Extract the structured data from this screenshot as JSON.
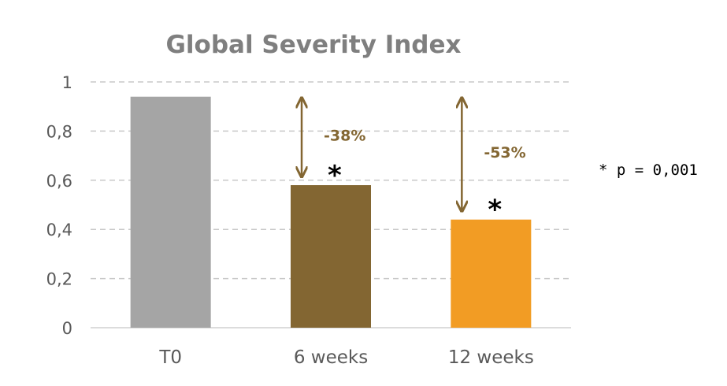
{
  "chart_data": {
    "type": "bar",
    "title": "Global Severity Index",
    "categories": [
      "T0",
      "6 weeks",
      "12 weeks"
    ],
    "values": [
      0.94,
      0.58,
      0.44
    ],
    "bar_colors": [
      "#a5a5a5",
      "#836632",
      "#f29c24"
    ],
    "ylim": [
      0,
      1
    ],
    "yticks": [
      0,
      0.2,
      0.4,
      0.6,
      0.8,
      1
    ],
    "ytick_labels": [
      "0",
      "0,2",
      "0,4",
      "0,6",
      "0,8",
      "1"
    ],
    "grid": true,
    "grid_style": "dashed",
    "annotations": [
      {
        "category": "6 weeks",
        "label": "-38%",
        "from": 0.94,
        "to": 0.58,
        "significance": "*"
      },
      {
        "category": "12 weeks",
        "label": "-53%",
        "from": 0.94,
        "to": 0.44,
        "significance": "*"
      }
    ],
    "note": "* p = 0,001",
    "colors": {
      "title": "#7f7f7f",
      "tick": "#595959",
      "grid": "#c8c8c8",
      "axis": "#d0d0d0",
      "annotation": "#836632",
      "asterisk": "#000000",
      "note": "#000000"
    }
  }
}
